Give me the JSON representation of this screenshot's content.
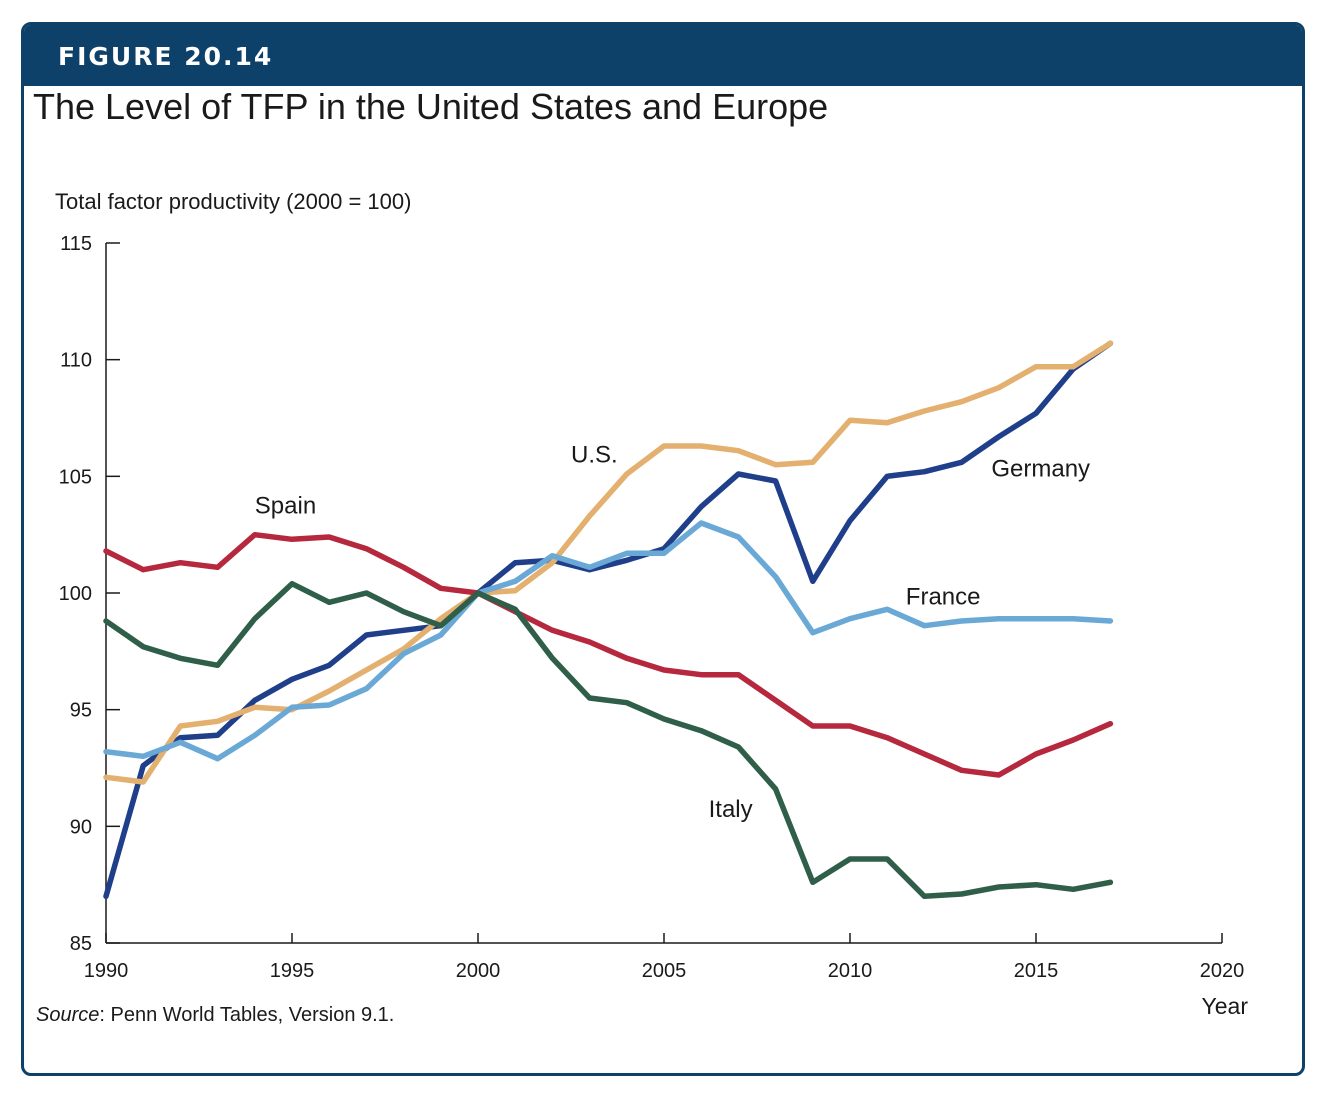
{
  "figure": {
    "label": "FIGURE 20.14",
    "title": "The Level of TFP in the United States and Europe",
    "source_prefix": "Source",
    "source_text": ": Penn World Tables, Version 9.1."
  },
  "colors": {
    "frame": "#0d4169",
    "germany": "#1f3f8a",
    "us": "#e3b06f",
    "france": "#6aa8d6",
    "spain": "#b5283d",
    "italy": "#2f5e49"
  },
  "chart_data": {
    "type": "line",
    "title": "The Level of TFP in the United States and Europe",
    "ylabel": "Total factor productivity (2000 = 100)",
    "xlabel": "Year",
    "xlim": [
      1990,
      2020
    ],
    "ylim": [
      85,
      115
    ],
    "xticks": [
      "1990",
      "1995",
      "2000",
      "2005",
      "2010",
      "2015",
      "2020"
    ],
    "yticks": [
      "85",
      "90",
      "95",
      "100",
      "105",
      "110",
      "115"
    ],
    "grid": false,
    "x": [
      1990,
      1991,
      1992,
      1993,
      1994,
      1995,
      1996,
      1997,
      1998,
      1999,
      2000,
      2001,
      2002,
      2003,
      2004,
      2005,
      2006,
      2007,
      2008,
      2009,
      2010,
      2011,
      2012,
      2013,
      2014,
      2015,
      2016,
      2017
    ],
    "series": [
      {
        "name": "Germany",
        "color": "#1f3f8a",
        "values": [
          87.0,
          92.6,
          93.8,
          93.9,
          95.4,
          96.3,
          96.9,
          98.2,
          98.4,
          98.6,
          100.0,
          101.3,
          101.4,
          101.0,
          101.4,
          101.9,
          103.7,
          105.1,
          104.8,
          100.5,
          103.1,
          105.0,
          105.2,
          105.6,
          106.7,
          107.7,
          109.6,
          110.7
        ],
        "label_x": 2013.8,
        "label_y": 105.0
      },
      {
        "name": "U.S.",
        "color": "#e3b06f",
        "values": [
          92.1,
          91.9,
          94.3,
          94.5,
          95.1,
          95.0,
          95.8,
          96.7,
          97.6,
          98.9,
          100.0,
          100.1,
          101.3,
          103.3,
          105.1,
          106.3,
          106.3,
          106.1,
          105.5,
          105.6,
          107.4,
          107.3,
          107.8,
          108.2,
          108.8,
          109.7,
          109.7,
          110.7
        ],
        "label_x": 2002.5,
        "label_y": 105.6
      },
      {
        "name": "France",
        "color": "#6aa8d6",
        "values": [
          93.2,
          93.0,
          93.6,
          92.9,
          93.9,
          95.1,
          95.2,
          95.9,
          97.4,
          98.2,
          100.0,
          100.5,
          101.6,
          101.1,
          101.7,
          101.7,
          103.0,
          102.4,
          100.7,
          98.3,
          98.9,
          99.3,
          98.6,
          98.8,
          98.9,
          98.9,
          98.9,
          98.8
        ],
        "label_x": 2011.5,
        "label_y": 99.5
      },
      {
        "name": "Spain",
        "color": "#b5283d",
        "values": [
          101.8,
          101.0,
          101.3,
          101.1,
          102.5,
          102.3,
          102.4,
          101.9,
          101.1,
          100.2,
          100.0,
          99.2,
          98.4,
          97.9,
          97.2,
          96.7,
          96.5,
          96.5,
          95.4,
          94.3,
          94.3,
          93.8,
          93.1,
          92.4,
          92.2,
          93.1,
          93.7,
          94.4
        ],
        "label_x": 1994.0,
        "label_y": 103.4
      },
      {
        "name": "Italy",
        "color": "#2f5e49",
        "values": [
          98.8,
          97.7,
          97.2,
          96.9,
          98.9,
          100.4,
          99.6,
          100.0,
          99.2,
          98.6,
          100.0,
          99.3,
          97.2,
          95.5,
          95.3,
          94.6,
          94.1,
          93.4,
          91.6,
          87.6,
          88.6,
          88.6,
          87.0,
          87.1,
          87.4,
          87.5,
          87.3,
          87.6
        ],
        "label_x": 2006.2,
        "label_y": 90.4
      }
    ]
  }
}
